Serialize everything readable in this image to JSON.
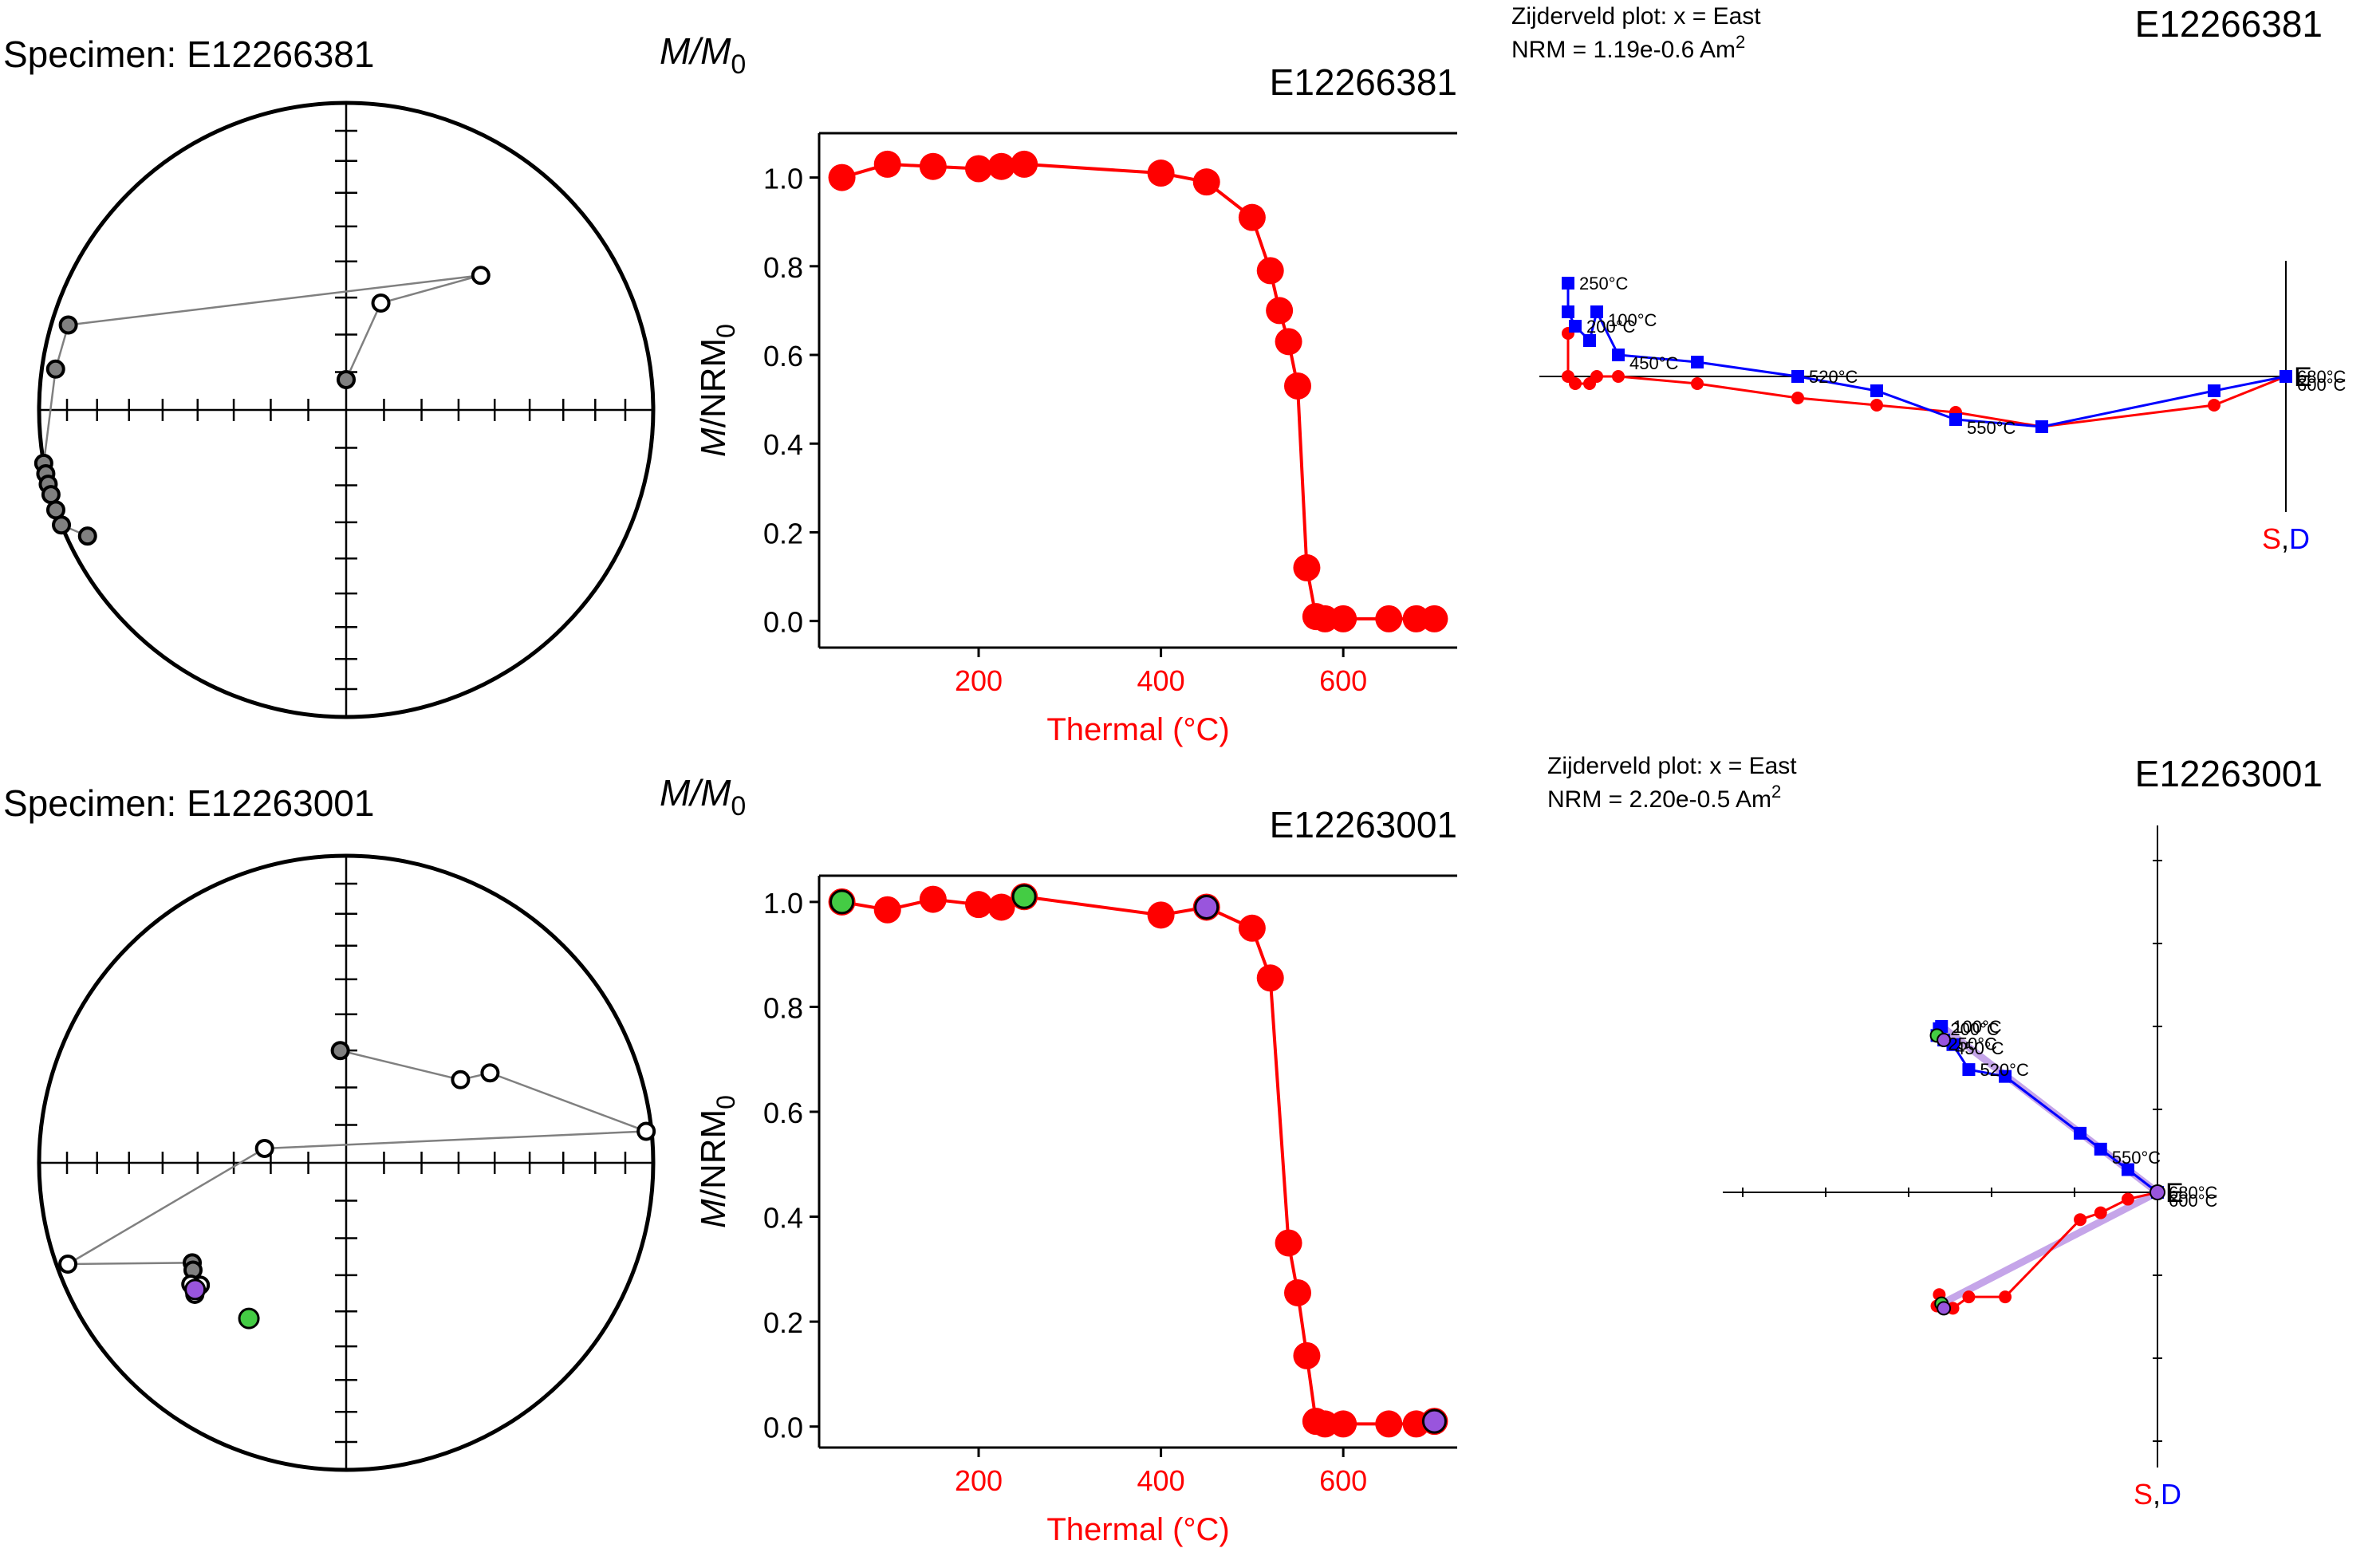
{
  "colors": {
    "red": "#ff0000",
    "blue": "#0000ff",
    "green": "#44cc44",
    "purple": "#9955dd",
    "lavender": "#b68fe3",
    "gray": "#808080",
    "black": "#000000"
  },
  "chart_data": [
    {
      "type": "scatter",
      "panel": "equal-area",
      "title": "Specimen: E12266381",
      "points": [
        {
          "dec": 0,
          "inc": 82,
          "lower": true
        },
        {
          "dec": 18,
          "inc": 60,
          "lower": false
        },
        {
          "dec": 45,
          "inc": 38,
          "lower": false
        },
        {
          "dec": 287,
          "inc": 6,
          "lower": true
        },
        {
          "dec": 278,
          "inc": 5,
          "lower": true
        },
        {
          "dec": 260,
          "inc": 0,
          "lower": true
        },
        {
          "dec": 258,
          "inc": 0,
          "lower": true
        },
        {
          "dec": 256,
          "inc": 0,
          "lower": true
        },
        {
          "dec": 254,
          "inc": 0,
          "lower": true
        },
        {
          "dec": 251,
          "inc": 0,
          "lower": true
        },
        {
          "dec": 248,
          "inc": 0,
          "lower": true
        },
        {
          "dec": 244,
          "inc": 7,
          "lower": true
        }
      ]
    },
    {
      "type": "line",
      "panel": "demag",
      "title": "E12266381",
      "ylabel_top": "M/M0",
      "ylabel": "M/NRM0",
      "xlabel": "Thermal (°C)",
      "xticks": [
        200,
        400,
        600
      ],
      "yticks": [
        "0.0",
        "0.2",
        "0.4",
        "0.6",
        "0.8",
        "1.0"
      ],
      "xlim": [
        25,
        725
      ],
      "ylim": [
        -0.06,
        1.1
      ],
      "x": [
        50,
        100,
        150,
        200,
        225,
        250,
        400,
        450,
        500,
        520,
        530,
        540,
        550,
        560,
        570,
        580,
        600,
        650,
        680,
        700
      ],
      "y": [
        1.0,
        1.03,
        1.025,
        1.02,
        1.025,
        1.03,
        1.01,
        0.99,
        0.91,
        0.79,
        0.7,
        0.63,
        0.53,
        0.12,
        0.01,
        0.005,
        0.005,
        0.005,
        0.005,
        0.005
      ],
      "highlights": []
    },
    {
      "type": "line",
      "panel": "zijderveld",
      "title": "E12266381",
      "header_line1": "Zijderveld plot: x = East",
      "header_line2": "NRM = 1.19e-0.6 Am",
      "header_sup": "2",
      "axis_label_east": "E",
      "axis_label_down_s": "S",
      "axis_label_down_sep": ",",
      "axis_label_down_d": "D",
      "show_ticks": false,
      "east": [
        -1.0,
        -1.0,
        -0.99,
        -0.97,
        -0.96,
        -0.93,
        -0.82,
        -0.68,
        -0.57,
        -0.46,
        -0.34,
        -0.1,
        0.0,
        0.0
      ],
      "north": [
        0.13,
        0.09,
        0.07,
        0.05,
        0.09,
        0.03,
        0.02,
        0.0,
        -0.02,
        -0.06,
        -0.07,
        -0.02,
        0.0,
        0.0
      ],
      "horiz": [
        0.06,
        0.0,
        -0.01,
        -0.01,
        0.0,
        0.0,
        -0.01,
        -0.03,
        -0.04,
        -0.05,
        -0.07,
        -0.04,
        0.0,
        0.0
      ],
      "temps": [
        {
          "i": 0,
          "text": "250°C"
        },
        {
          "i": 4,
          "text": "100°C"
        },
        {
          "i": 2,
          "text": "200°C"
        },
        {
          "i": 5,
          "text": "450°C"
        },
        {
          "i": 7,
          "text": "520°C"
        },
        {
          "i": 9,
          "text": "550°C"
        },
        {
          "i": 12,
          "text": "680°C"
        },
        {
          "i": 13,
          "text": "600°C"
        }
      ]
    },
    {
      "type": "scatter",
      "panel": "equal-area",
      "title": "Specimen: E12263001",
      "points": [
        {
          "dec": 357,
          "inc": 60,
          "lower": true
        },
        {
          "dec": 54,
          "inc": 52,
          "lower": false
        },
        {
          "dec": 58,
          "inc": 44,
          "lower": false
        },
        {
          "dec": 84,
          "inc": 2,
          "lower": false
        },
        {
          "dec": 280,
          "inc": 68,
          "lower": false
        },
        {
          "dec": 250,
          "inc": 4,
          "lower": false
        },
        {
          "dec": 237,
          "inc": 40,
          "lower": true
        },
        {
          "dec": 235,
          "inc": 39,
          "lower": true
        },
        {
          "dec": 230,
          "inc": 38,
          "lower": false
        },
        {
          "dec": 229,
          "inc": 35,
          "lower": false
        },
        {
          "dec": 232,
          "inc": 36,
          "lower": false
        }
      ],
      "special": [
        {
          "dec": 230,
          "inc": 36,
          "fill": "purple"
        },
        {
          "dec": 212,
          "inc": 40,
          "fill": "green"
        }
      ]
    },
    {
      "type": "line",
      "panel": "demag",
      "title": "E12263001",
      "ylabel_top": "M/M0",
      "ylabel": "M/NRM0",
      "xlabel": "Thermal (°C)",
      "xticks": [
        200,
        400,
        600
      ],
      "yticks": [
        "0.0",
        "0.2",
        "0.4",
        "0.6",
        "0.8",
        "1.0"
      ],
      "xlim": [
        25,
        725
      ],
      "ylim": [
        -0.04,
        1.05
      ],
      "x": [
        50,
        100,
        150,
        200,
        225,
        250,
        400,
        450,
        500,
        520,
        540,
        550,
        560,
        570,
        580,
        600,
        650,
        680,
        700
      ],
      "y": [
        1.0,
        0.985,
        1.005,
        0.995,
        0.99,
        1.01,
        0.975,
        0.99,
        0.95,
        0.855,
        0.35,
        0.255,
        0.135,
        0.01,
        0.005,
        0.005,
        0.005,
        0.005,
        0.01
      ],
      "highlights": [
        {
          "i": 0,
          "fill": "green"
        },
        {
          "i": 5,
          "fill": "green"
        },
        {
          "i": 7,
          "fill": "purple"
        },
        {
          "i": 18,
          "fill": "purple"
        }
      ]
    },
    {
      "type": "line",
      "panel": "zijderveld",
      "title": "E12263001",
      "header_line1": "Zijderveld plot: x = East",
      "header_line2": "NRM = 2.20e-0.5 Am",
      "header_sup": "2",
      "axis_label_east": "E",
      "axis_label_down_s": "S",
      "axis_label_down_sep": ",",
      "axis_label_down_d": "D",
      "show_ticks": true,
      "east": [
        -0.95,
        -0.97,
        -0.96,
        -0.94,
        -0.9,
        -0.83,
        -0.67,
        -0.34,
        -0.25,
        -0.13,
        0.0,
        0.0
      ],
      "north": [
        0.73,
        0.69,
        0.72,
        0.67,
        0.65,
        0.54,
        0.51,
        0.26,
        0.19,
        0.1,
        0.0,
        0.0
      ],
      "horiz": [
        -0.49,
        -0.5,
        -0.45,
        -0.51,
        -0.51,
        -0.46,
        -0.46,
        -0.12,
        -0.09,
        -0.03,
        0.0,
        0.0
      ],
      "temps": [
        {
          "i": 0,
          "text": "100°C"
        },
        {
          "i": 1,
          "text": "250°C"
        },
        {
          "i": 2,
          "text": "200°C"
        },
        {
          "i": 3,
          "text": "450°C"
        },
        {
          "i": 5,
          "text": "520°C"
        },
        {
          "i": 8,
          "text": "550°C"
        },
        {
          "i": 10,
          "text": "680°C"
        },
        {
          "i": 11,
          "text": "600°C"
        }
      ],
      "fit_line": true
    }
  ]
}
